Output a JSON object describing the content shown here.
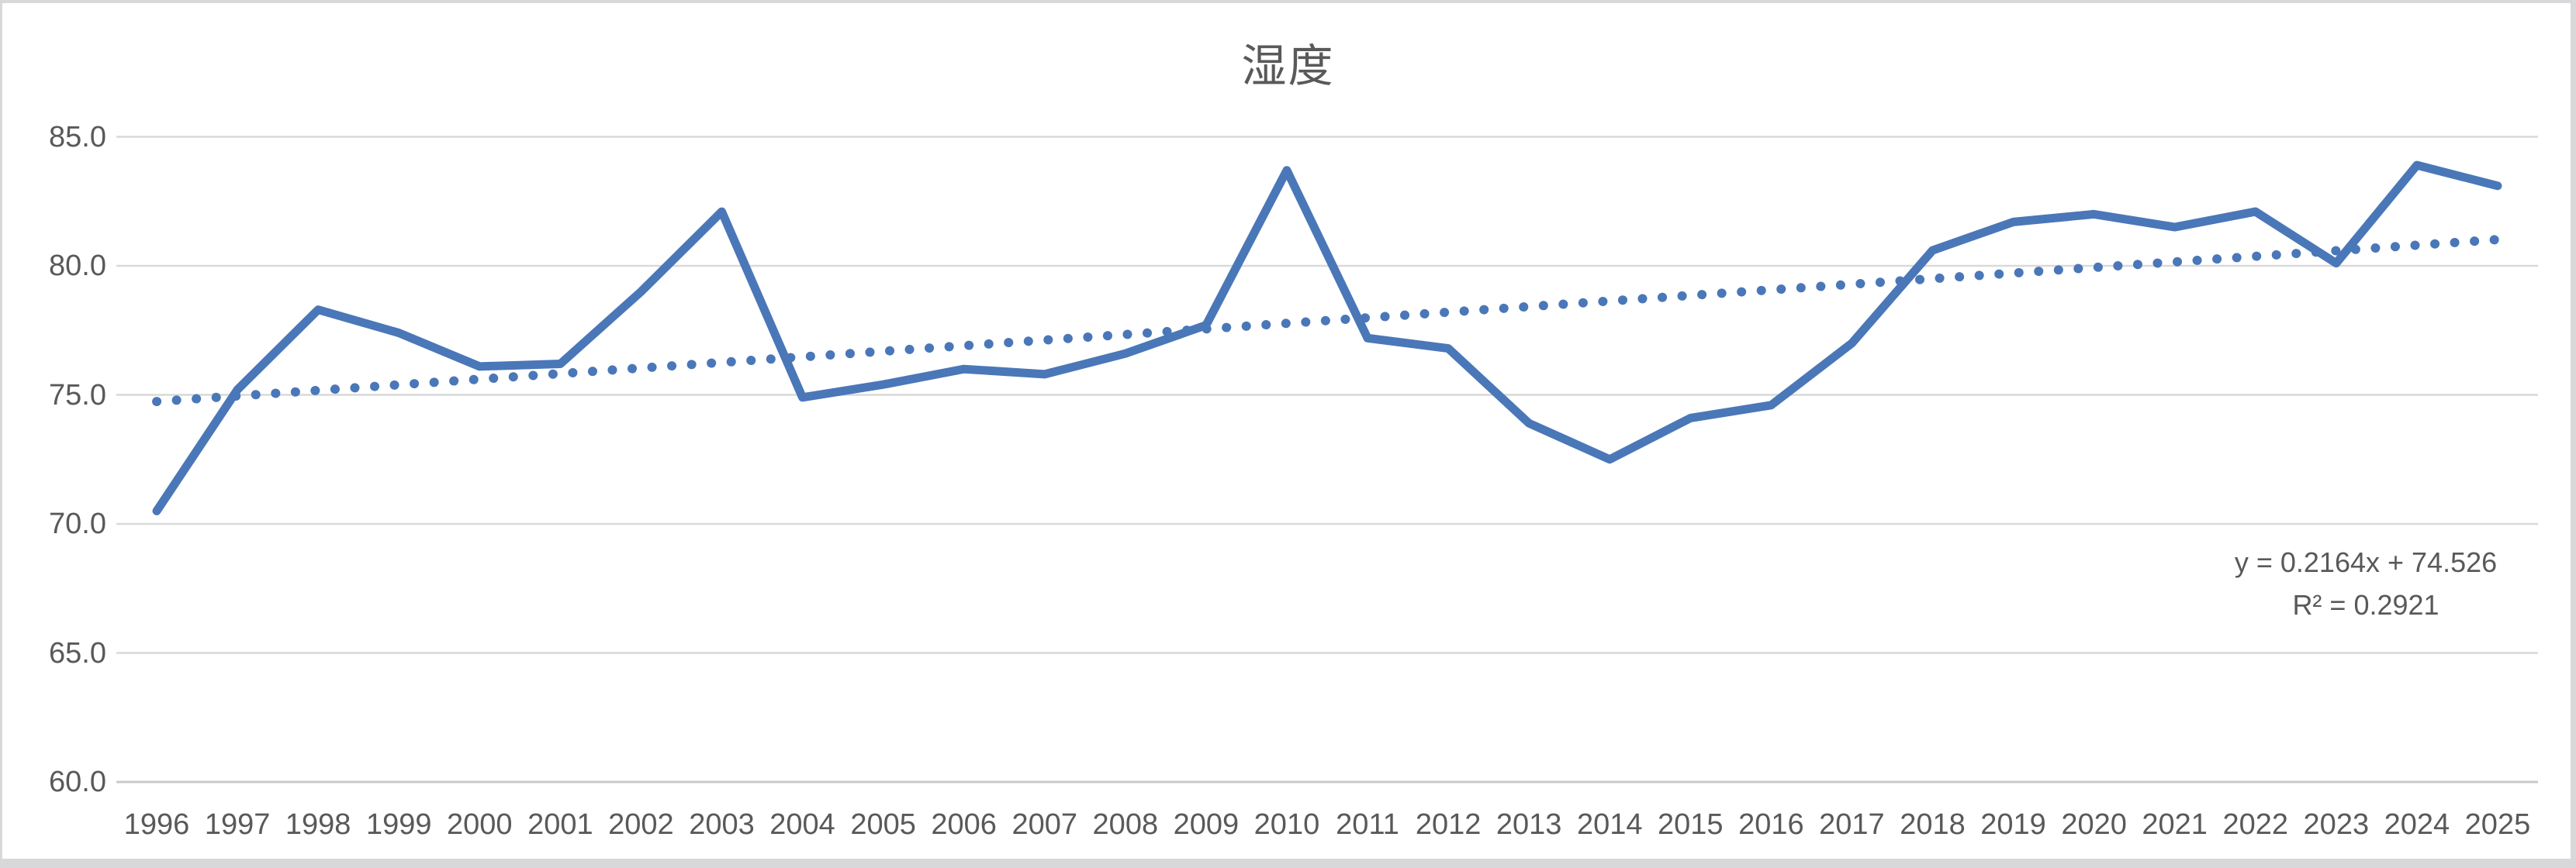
{
  "chart": {
    "title": "湿度",
    "equation_line1": "y = 0.2164x + 74.526",
    "equation_line2": "R² = 0.2921"
  },
  "chart_data": {
    "type": "line",
    "title": "湿度",
    "categories": [
      "1996",
      "1997",
      "1998",
      "1999",
      "2000",
      "2001",
      "2002",
      "2003",
      "2004",
      "2005",
      "2006",
      "2007",
      "2008",
      "2009",
      "2010",
      "2011",
      "2012",
      "2013",
      "2014",
      "2015",
      "2016",
      "2017",
      "2018",
      "2019",
      "2020",
      "2021",
      "2022",
      "2023",
      "2024",
      "2025"
    ],
    "series": [
      {
        "name": "湿度",
        "values": [
          70.5,
          75.2,
          78.3,
          77.4,
          76.1,
          76.2,
          79.0,
          82.1,
          74.9,
          75.4,
          76.0,
          75.8,
          76.6,
          77.7,
          83.7,
          77.2,
          76.8,
          73.9,
          72.5,
          74.1,
          74.6,
          77.0,
          80.6,
          81.7,
          82.0,
          81.5,
          82.1,
          80.1,
          83.9,
          83.1
        ]
      }
    ],
    "trendline": {
      "type": "linear",
      "slope": 0.2164,
      "intercept": 74.526,
      "r_squared": 0.2921,
      "label": "y = 0.2164x + 74.526",
      "r2_label": "R² = 0.2921",
      "style": "dotted"
    },
    "ylim": [
      60,
      85
    ],
    "ytick_step": 5,
    "ytick_labels": [
      "85.0",
      "80.0",
      "75.0",
      "70.0",
      "65.0",
      "60.0"
    ],
    "xlabel": "",
    "ylabel": "",
    "grid": true,
    "legend_position": "none",
    "colors": {
      "series": "#4A77B8",
      "gridline": "#D9D9D9",
      "axis_line": "#C9C9C9",
      "axis_text": "#595959",
      "title_text": "#595959",
      "plot_background": "#FFFFFF",
      "frame_background": "#D8D8DB"
    }
  }
}
